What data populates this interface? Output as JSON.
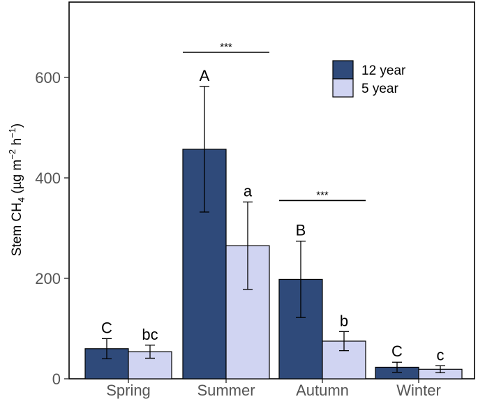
{
  "chart_data": {
    "type": "bar",
    "ylabel": {
      "prefix": "Stem CH",
      "sub": "4",
      "mid": " (µg m",
      "sup1": "−2",
      "mid2": " h",
      "sup2": "−1",
      "suffix": ")"
    },
    "ylim": [
      0,
      750
    ],
    "yticks": [
      0,
      200,
      400,
      600
    ],
    "grid": false,
    "legend_position": "top-right",
    "categories": [
      "Spring",
      "Summer",
      "Autumn",
      "Winter"
    ],
    "series": [
      {
        "name": "12 year",
        "color": "#2f4a7a",
        "values": [
          60,
          457,
          198,
          23
        ],
        "error": [
          20,
          125,
          76,
          10
        ],
        "letters": [
          "C",
          "A",
          "B",
          "C"
        ]
      },
      {
        "name": "5 year",
        "color": "#d0d4f2",
        "values": [
          54,
          265,
          75,
          19
        ],
        "error": [
          13,
          87,
          19,
          7
        ],
        "letters": [
          "bc",
          "a",
          "b",
          "c"
        ]
      }
    ],
    "significance": [
      {
        "category": "Summer",
        "label": "***",
        "y": 650
      },
      {
        "category": "Autumn",
        "label": "***",
        "y": 355
      }
    ]
  }
}
